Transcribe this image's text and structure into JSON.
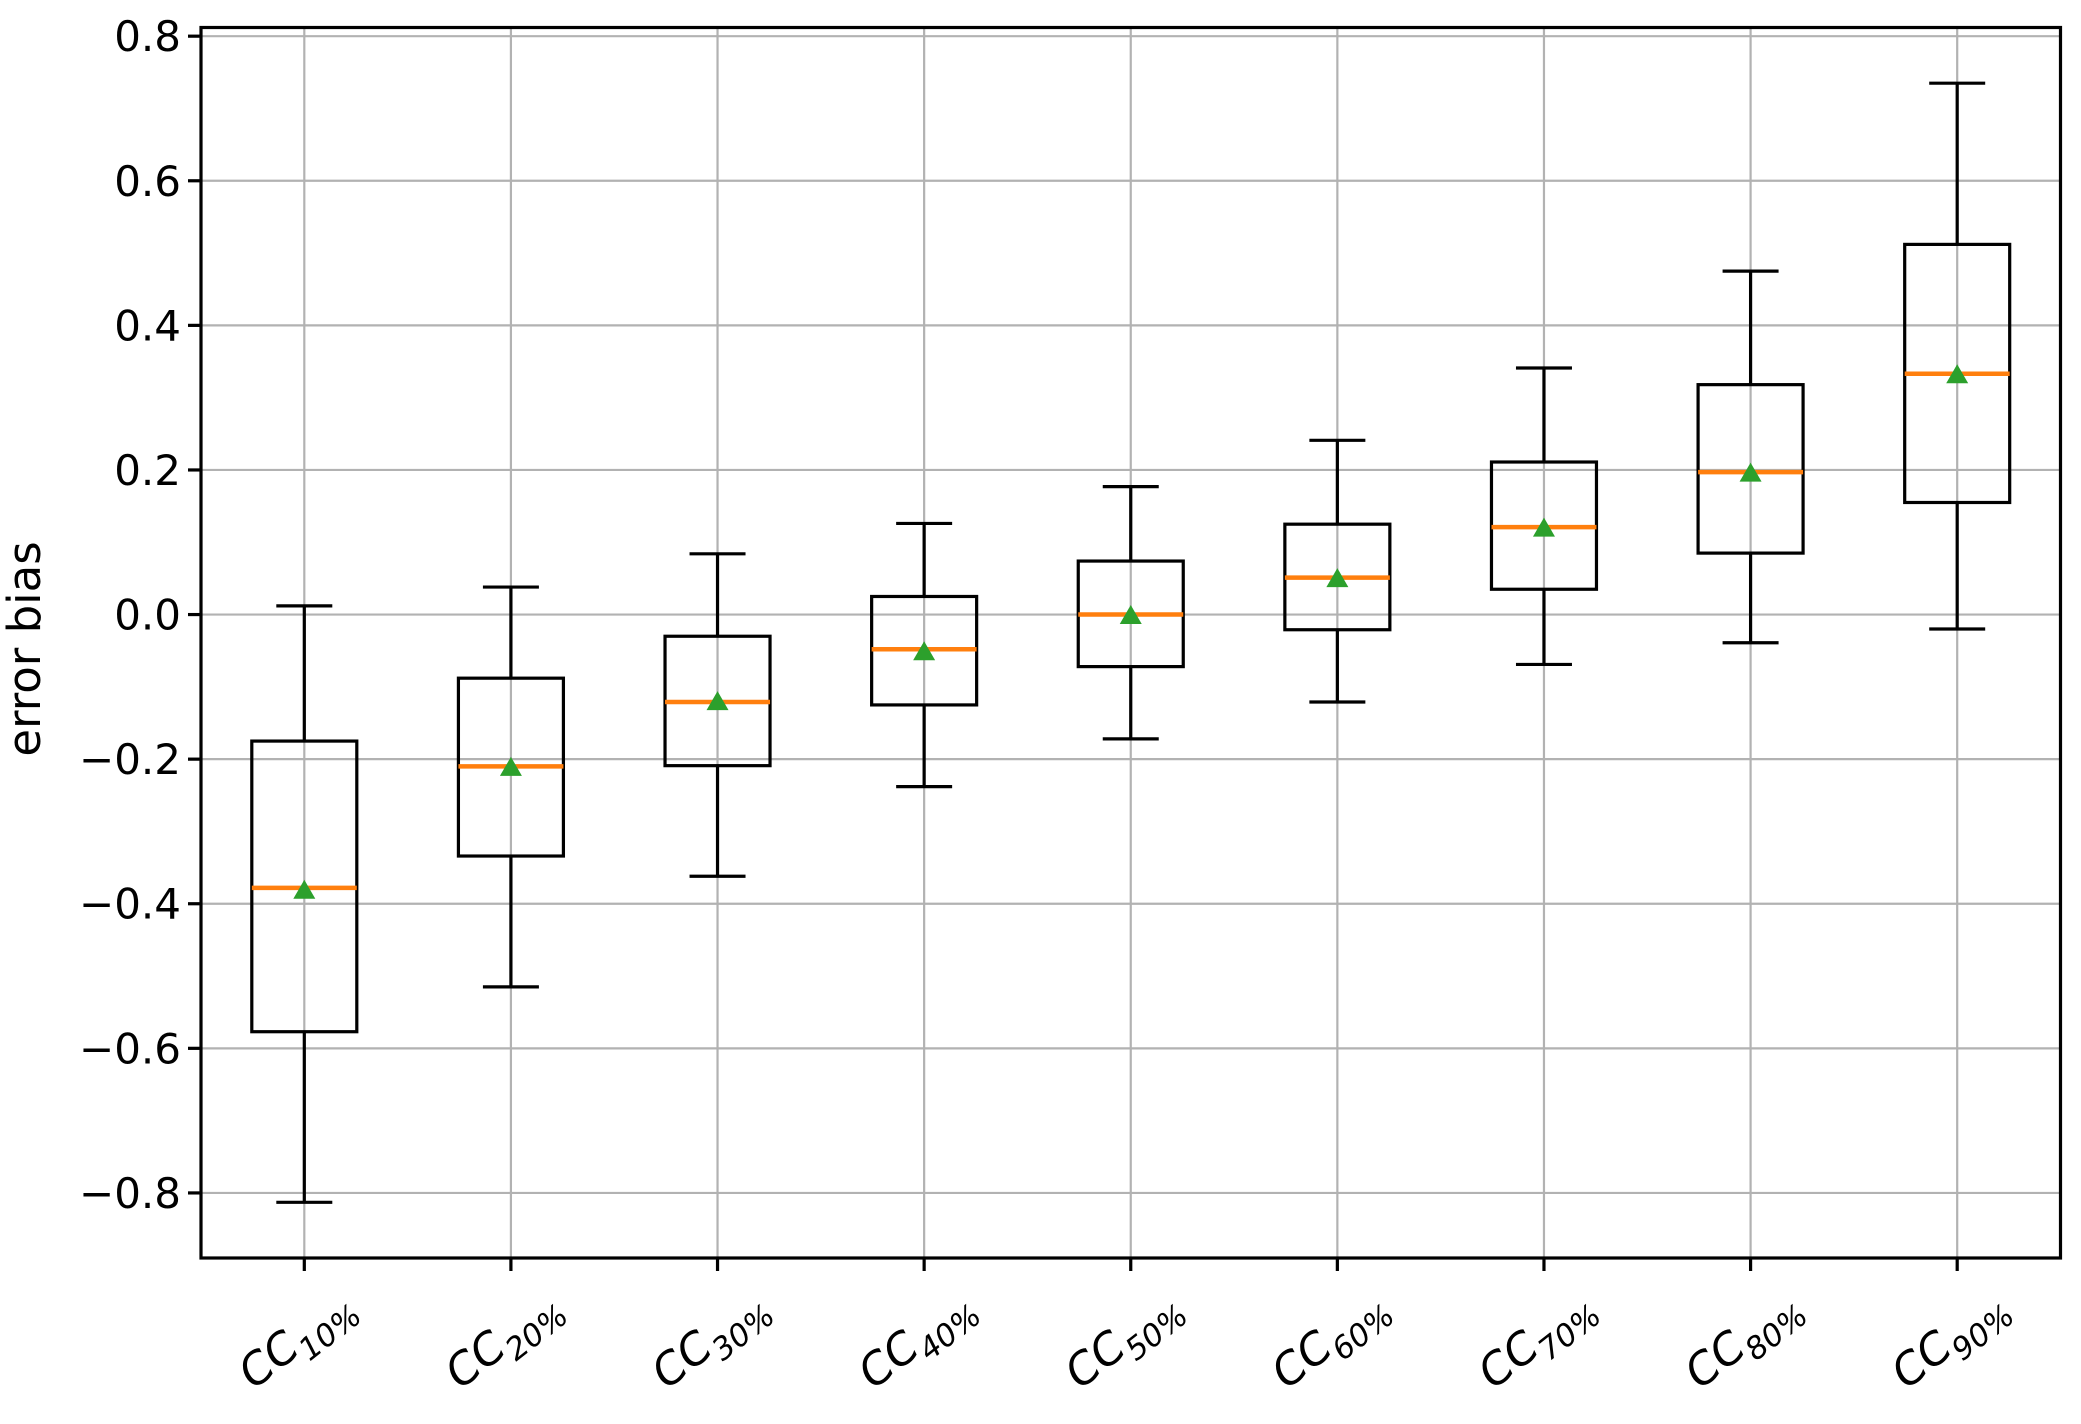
{
  "chart_data": {
    "type": "boxplot",
    "title": "",
    "xlabel": "",
    "ylabel": "error bias",
    "grid": true,
    "legend": null,
    "ylim": [
      -0.89,
      0.812
    ],
    "yticks": [
      -0.8,
      -0.6,
      -0.4,
      -0.2,
      0.0,
      0.2,
      0.4,
      0.6,
      0.8
    ],
    "ytick_labels": [
      "−0.8",
      "−0.6",
      "−0.4",
      "−0.2",
      "0.0",
      "0.2",
      "0.4",
      "0.6",
      "0.8"
    ],
    "x_tick_rotation_deg": 38,
    "categories": [
      {
        "label": "CC10%",
        "prefix": "CC",
        "subscript": "10%"
      },
      {
        "label": "CC20%",
        "prefix": "CC",
        "subscript": "20%"
      },
      {
        "label": "CC30%",
        "prefix": "CC",
        "subscript": "30%"
      },
      {
        "label": "CC40%",
        "prefix": "CC",
        "subscript": "40%"
      },
      {
        "label": "CC50%",
        "prefix": "CC",
        "subscript": "50%"
      },
      {
        "label": "CC60%",
        "prefix": "CC",
        "subscript": "60%"
      },
      {
        "label": "CC70%",
        "prefix": "CC",
        "subscript": "70%"
      },
      {
        "label": "CC80%",
        "prefix": "CC",
        "subscript": "80%"
      },
      {
        "label": "CC90%",
        "prefix": "CC",
        "subscript": "90%"
      }
    ],
    "boxes": [
      {
        "label": "CC10%",
        "whislo": -0.813,
        "q1": -0.577,
        "med": -0.378,
        "q3": -0.175,
        "whishi": 0.012,
        "mean": -0.38
      },
      {
        "label": "CC20%",
        "whislo": -0.515,
        "q1": -0.334,
        "med": -0.21,
        "q3": -0.088,
        "whishi": 0.038,
        "mean": -0.21
      },
      {
        "label": "CC30%",
        "whislo": -0.362,
        "q1": -0.209,
        "med": -0.121,
        "q3": -0.03,
        "whishi": 0.084,
        "mean": -0.119
      },
      {
        "label": "CC40%",
        "whislo": -0.238,
        "q1": -0.125,
        "med": -0.048,
        "q3": 0.025,
        "whishi": 0.126,
        "mean": -0.05
      },
      {
        "label": "CC50%",
        "whislo": -0.172,
        "q1": -0.072,
        "med": 0.0,
        "q3": 0.074,
        "whishi": 0.177,
        "mean": 0.0
      },
      {
        "label": "CC60%",
        "whislo": -0.121,
        "q1": -0.021,
        "med": 0.051,
        "q3": 0.125,
        "whishi": 0.241,
        "mean": 0.051
      },
      {
        "label": "CC70%",
        "whislo": -0.069,
        "q1": 0.035,
        "med": 0.121,
        "q3": 0.211,
        "whishi": 0.341,
        "mean": 0.121
      },
      {
        "label": "CC80%",
        "whislo": -0.039,
        "q1": 0.085,
        "med": 0.197,
        "q3": 0.318,
        "whishi": 0.475,
        "mean": 0.197
      },
      {
        "label": "CC90%",
        "whislo": -0.02,
        "q1": 0.155,
        "med": 0.333,
        "q3": 0.512,
        "whishi": 0.735,
        "mean": 0.333
      }
    ],
    "marker": {
      "mean": "triangle-up"
    },
    "colors": {
      "box": "#000000",
      "whisker": "#000000",
      "cap": "#000000",
      "median": "#ff7f0e",
      "mean_marker": "#2ca02c",
      "grid": "#b2b2b2",
      "spine": "#000000",
      "tick": "#000000",
      "background": "#ffffff"
    }
  }
}
